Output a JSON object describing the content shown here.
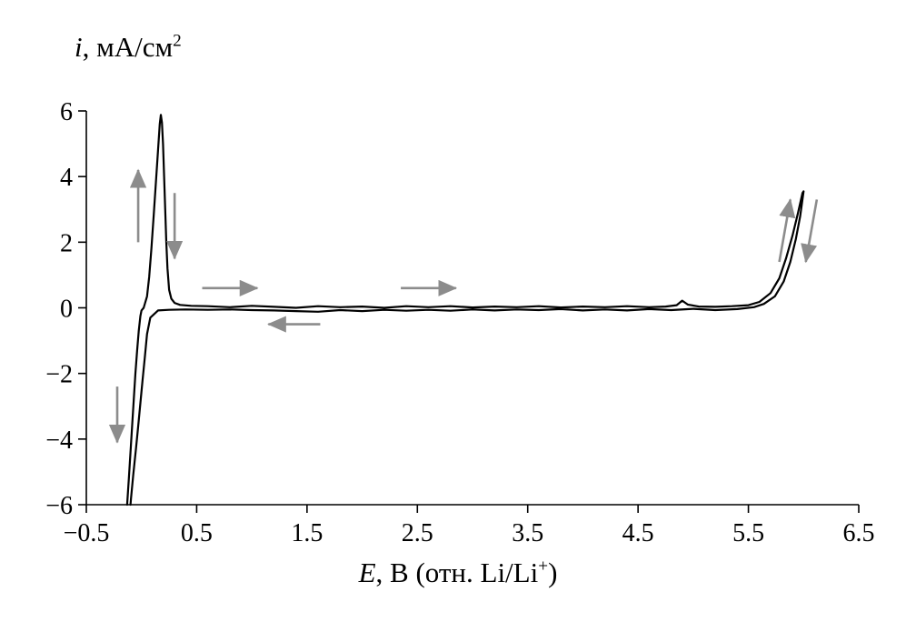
{
  "figure": {
    "ylabel": {
      "var": "i",
      "unit": ", мА/см",
      "sup": "2"
    },
    "xlabel": {
      "var": "E",
      "unit": ", В (отн. Li/Li",
      "sup": "+",
      "close": ")"
    }
  },
  "chart_data": {
    "type": "line",
    "title": "",
    "xlabel": "E, В (отн. Li/Li+)",
    "ylabel": "i, мА/см2",
    "xlim": [
      -0.5,
      6.5
    ],
    "ylim": [
      -6,
      6
    ],
    "xticks": [
      -0.5,
      0.5,
      1.5,
      2.5,
      3.5,
      4.5,
      5.5,
      6.5
    ],
    "yticks": [
      -6,
      -4,
      -2,
      0,
      2,
      4,
      6
    ],
    "xtick_labels": [
      "−0.5",
      "0.5",
      "1.5",
      "2.5",
      "3.5",
      "4.5",
      "5.5",
      "6.5"
    ],
    "ytick_labels": [
      "−6",
      "−4",
      "−2",
      "0",
      "2",
      "4",
      "6"
    ],
    "grid": false,
    "legend": false,
    "line_color": "#000000",
    "arrow_color": "#8c8c8c",
    "series": [
      {
        "name": "cyclic-voltammogram-trace",
        "points": [
          [
            -0.13,
            -6
          ],
          [
            -0.115,
            -5.2
          ],
          [
            -0.1,
            -4.4
          ],
          [
            -0.085,
            -3.6
          ],
          [
            -0.07,
            -2.8
          ],
          [
            -0.055,
            -2.0
          ],
          [
            -0.04,
            -1.3
          ],
          [
            -0.025,
            -0.7
          ],
          [
            -0.01,
            -0.25
          ],
          [
            0.0,
            -0.08
          ],
          [
            0.02,
            0.0
          ],
          [
            0.05,
            0.35
          ],
          [
            0.07,
            0.95
          ],
          [
            0.09,
            1.8
          ],
          [
            0.11,
            2.8
          ],
          [
            0.13,
            3.8
          ],
          [
            0.15,
            4.8
          ],
          [
            0.165,
            5.6
          ],
          [
            0.175,
            5.88
          ],
          [
            0.185,
            5.65
          ],
          [
            0.195,
            5.0
          ],
          [
            0.205,
            4.0
          ],
          [
            0.215,
            3.0
          ],
          [
            0.225,
            2.0
          ],
          [
            0.235,
            1.2
          ],
          [
            0.25,
            0.55
          ],
          [
            0.27,
            0.28
          ],
          [
            0.3,
            0.15
          ],
          [
            0.35,
            0.09
          ],
          [
            0.45,
            0.06
          ],
          [
            0.6,
            0.05
          ],
          [
            0.8,
            0.02
          ],
          [
            1.0,
            0.06
          ],
          [
            1.2,
            0.03
          ],
          [
            1.4,
            0.0
          ],
          [
            1.6,
            0.05
          ],
          [
            1.8,
            0.02
          ],
          [
            2.0,
            0.04
          ],
          [
            2.2,
            0.0
          ],
          [
            2.4,
            0.05
          ],
          [
            2.6,
            0.02
          ],
          [
            2.8,
            0.05
          ],
          [
            3.0,
            0.01
          ],
          [
            3.2,
            0.04
          ],
          [
            3.4,
            0.02
          ],
          [
            3.6,
            0.05
          ],
          [
            3.8,
            0.01
          ],
          [
            4.0,
            0.04
          ],
          [
            4.2,
            0.02
          ],
          [
            4.4,
            0.05
          ],
          [
            4.6,
            0.02
          ],
          [
            4.75,
            0.04
          ],
          [
            4.85,
            0.08
          ],
          [
            4.9,
            0.22
          ],
          [
            4.95,
            0.1
          ],
          [
            5.05,
            0.04
          ],
          [
            5.2,
            0.03
          ],
          [
            5.35,
            0.05
          ],
          [
            5.5,
            0.08
          ],
          [
            5.6,
            0.18
          ],
          [
            5.7,
            0.45
          ],
          [
            5.78,
            0.9
          ],
          [
            5.84,
            1.5
          ],
          [
            5.9,
            2.2
          ],
          [
            5.95,
            2.9
          ],
          [
            5.99,
            3.5
          ],
          [
            6.0,
            3.55
          ],
          [
            5.97,
            2.8
          ],
          [
            5.93,
            2.1
          ],
          [
            5.88,
            1.4
          ],
          [
            5.82,
            0.8
          ],
          [
            5.74,
            0.35
          ],
          [
            5.64,
            0.12
          ],
          [
            5.55,
            0.02
          ],
          [
            5.4,
            -0.04
          ],
          [
            5.2,
            -0.07
          ],
          [
            5.0,
            -0.03
          ],
          [
            4.8,
            -0.07
          ],
          [
            4.6,
            -0.04
          ],
          [
            4.4,
            -0.08
          ],
          [
            4.2,
            -0.05
          ],
          [
            4.0,
            -0.08
          ],
          [
            3.8,
            -0.04
          ],
          [
            3.6,
            -0.07
          ],
          [
            3.4,
            -0.05
          ],
          [
            3.2,
            -0.08
          ],
          [
            3.0,
            -0.05
          ],
          [
            2.8,
            -0.09
          ],
          [
            2.6,
            -0.06
          ],
          [
            2.4,
            -0.09
          ],
          [
            2.2,
            -0.06
          ],
          [
            2.0,
            -0.1
          ],
          [
            1.8,
            -0.07
          ],
          [
            1.6,
            -0.12
          ],
          [
            1.4,
            -0.1
          ],
          [
            1.2,
            -0.08
          ],
          [
            1.0,
            -0.07
          ],
          [
            0.8,
            -0.05
          ],
          [
            0.6,
            -0.06
          ],
          [
            0.4,
            -0.05
          ],
          [
            0.25,
            -0.06
          ],
          [
            0.15,
            -0.08
          ],
          [
            0.08,
            -0.3
          ],
          [
            0.05,
            -0.8
          ],
          [
            0.03,
            -1.5
          ],
          [
            0.01,
            -2.2
          ],
          [
            -0.01,
            -2.9
          ],
          [
            -0.03,
            -3.6
          ],
          [
            -0.05,
            -4.3
          ],
          [
            -0.075,
            -5.1
          ],
          [
            -0.095,
            -5.8
          ],
          [
            -0.1,
            -6.0
          ]
        ]
      }
    ],
    "arrows": [
      {
        "x1": -0.03,
        "y1": 2.0,
        "x2": -0.03,
        "y2": 4.2
      },
      {
        "x1": 0.3,
        "y1": 3.5,
        "x2": 0.3,
        "y2": 1.5
      },
      {
        "x1": 0.55,
        "y1": 0.6,
        "x2": 1.05,
        "y2": 0.6
      },
      {
        "x1": 1.62,
        "y1": -0.5,
        "x2": 1.15,
        "y2": -0.5
      },
      {
        "x1": 2.35,
        "y1": 0.6,
        "x2": 2.85,
        "y2": 0.6
      },
      {
        "x1": -0.22,
        "y1": -2.4,
        "x2": -0.22,
        "y2": -4.1
      },
      {
        "x1": 5.78,
        "y1": 1.4,
        "x2": 5.88,
        "y2": 3.3
      },
      {
        "x1": 6.12,
        "y1": 3.3,
        "x2": 6.02,
        "y2": 1.4
      }
    ]
  }
}
